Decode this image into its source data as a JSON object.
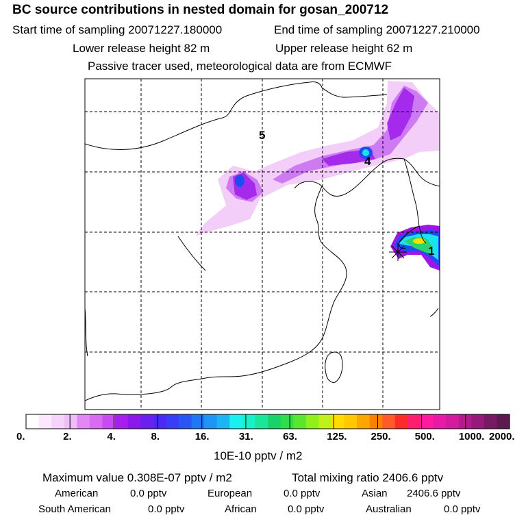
{
  "header": {
    "title": "BC  source contributions in nested domain for gosan_200712",
    "start_time": "Start time of sampling 20071227.180000",
    "end_time": "End time of sampling 20071227.210000",
    "lower_release": "Lower release height   82 m",
    "upper_release": "Upper release height   62 m",
    "tracer_note": "Passive tracer used, meteorological data are from ECMWF"
  },
  "map": {
    "markers": [
      "5",
      "4",
      "1"
    ],
    "colors": {
      "coast": "#000000",
      "grid": "#000000",
      "light_plume": "#f2c9f7",
      "mid_plume": "#c66bf2",
      "core_plume": "#9b16e8",
      "hotspot_blue": "#1e4cf0",
      "hotspot_cyan": "#1ae3f0",
      "hotspot_green": "#2bd36b",
      "station": "#ffde00"
    }
  },
  "colorbar": {
    "tick_labels": [
      "0.",
      "2.",
      "4.",
      "8.",
      "16.",
      "31.",
      "63.",
      "125.",
      "250.",
      "500.",
      "1000.",
      "2000."
    ],
    "colors": [
      "#ffffff",
      "#fbe8fd",
      "#f6d3fa",
      "#efbef8",
      "#e387f5",
      "#d96af3",
      "#c84af1",
      "#a81ef0",
      "#8b18ea",
      "#6a20f0",
      "#4a2bf5",
      "#3a3df7",
      "#2a55f5",
      "#1e77f5",
      "#1c95f5",
      "#1cb4f5",
      "#19f0f0",
      "#19f0c8",
      "#19e59b",
      "#19d26a",
      "#2de04b",
      "#5ae62d",
      "#8ff01a",
      "#bff01a",
      "#ffdc00",
      "#ffc800",
      "#ffa500",
      "#ff8000",
      "#ff5a28",
      "#ff2a2a",
      "#ff1e6e",
      "#ff1aa0",
      "#e81aa6",
      "#d31a9c",
      "#b51a8c",
      "#951a7a",
      "#761a64",
      "#5c1a50"
    ],
    "unit_label": "10E-10 pptv / m2"
  },
  "footer": {
    "max_value": "Maximum value  0.308E-07 pptv / m2",
    "total_mixing": "Total mixing ratio     2406.6 pptv",
    "american_label": "American",
    "american_value": "0.0 pptv",
    "european_label": "European",
    "european_value": "0.0 pptv",
    "asian_label": "Asian",
    "asian_value": "2406.6 pptv",
    "south_american_label": "South American",
    "south_american_value": "0.0 pptv",
    "african_label": "African",
    "african_value": "0.0 pptv",
    "australian_label": "Australian",
    "australian_value": "0.0 pptv"
  }
}
